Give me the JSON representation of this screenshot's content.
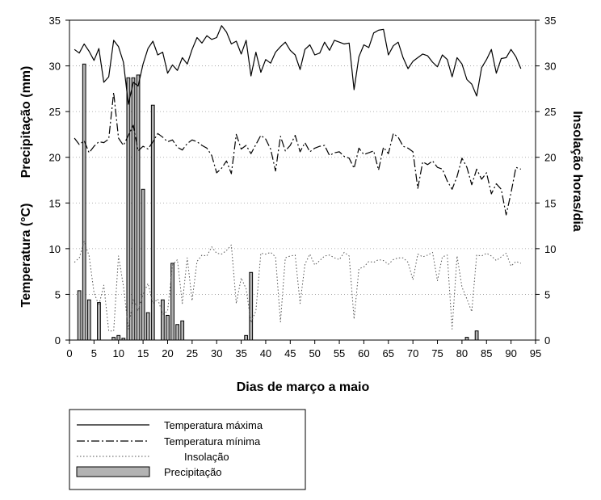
{
  "chart_data": {
    "type": "bar+line",
    "xlabel": "Dias de março a maio",
    "ylabel_left_top": "Precipitação (mm)",
    "ylabel_left_bottom": "Temperatura (°C)",
    "ylabel_right": "Insolação horas/dia",
    "xlim": [
      0,
      95
    ],
    "ylim_left": [
      0,
      35
    ],
    "ylim_right": [
      0,
      35
    ],
    "xticks": [
      0,
      5,
      10,
      15,
      20,
      25,
      30,
      35,
      40,
      45,
      50,
      55,
      60,
      65,
      70,
      75,
      80,
      85,
      90,
      95
    ],
    "yticks_left": [
      0,
      5,
      10,
      15,
      20,
      25,
      30,
      35
    ],
    "yticks_right": [
      0,
      5,
      10,
      15,
      20,
      25,
      30,
      35
    ],
    "grid": "horizontal dotted",
    "legend_position": "below",
    "legend": [
      {
        "label": "Temperatura máxima",
        "style": "solid"
      },
      {
        "label": "Temperatura mínima",
        "style": "dash-dot"
      },
      {
        "label": "Insolação",
        "style": "dotted"
      },
      {
        "label": "Precipitação",
        "style": "bar"
      }
    ],
    "series": [
      {
        "key": "tmax",
        "type": "line",
        "style": "solid",
        "x": [
          1,
          2,
          3,
          4,
          5,
          6,
          7,
          8,
          9,
          10,
          11,
          12,
          13,
          14,
          15,
          16,
          17,
          18,
          19,
          20,
          21,
          22,
          23,
          24,
          25,
          26,
          27,
          28,
          29,
          30,
          31,
          32,
          33,
          34,
          35,
          36,
          37,
          38,
          39,
          40,
          41,
          42,
          43,
          44,
          45,
          46,
          47,
          48,
          49,
          50,
          51,
          52,
          53,
          54,
          55,
          56,
          57,
          58,
          59,
          60,
          61,
          62,
          63,
          64,
          65,
          66,
          67,
          68,
          69,
          70,
          71,
          72,
          73,
          74,
          75,
          76,
          77,
          78,
          79,
          80,
          81,
          82,
          83,
          84,
          85,
          86,
          87,
          88,
          89,
          90,
          91,
          92
        ],
        "y": [
          31.8,
          31.4,
          32.4,
          31.6,
          30.6,
          31.9,
          28.2,
          28.8,
          32.8,
          32.1,
          30.4,
          25.8,
          28.2,
          27.8,
          30.2,
          31.9,
          32.7,
          31.2,
          31.5,
          29.2,
          30.1,
          29.5,
          30.9,
          30.2,
          31.8,
          33.1,
          32.5,
          33.3,
          32.9,
          33.1,
          34.4,
          33.7,
          32.4,
          32.7,
          31.3,
          32.8,
          28.9,
          31.5,
          29.3,
          30.7,
          30.3,
          31.5,
          32.1,
          32.6,
          31.7,
          31.2,
          29.6,
          31.8,
          32.3,
          31.2,
          31.4,
          32.6,
          31.7,
          32.8,
          32.6,
          32.4,
          32.5,
          27.4,
          31.0,
          32.3,
          32.0,
          33.6,
          33.9,
          34.0,
          31.2,
          32.2,
          32.6,
          30.9,
          29.7,
          30.5,
          30.9,
          31.3,
          31.1,
          30.4,
          29.9,
          31.2,
          30.7,
          28.8,
          30.9,
          30.2,
          28.5,
          28.0,
          26.7,
          29.8,
          30.7,
          31.8,
          29.2,
          30.8,
          30.9,
          31.8,
          31.0,
          29.7
        ]
      },
      {
        "key": "tmin",
        "type": "line",
        "style": "dash-dot",
        "x": [
          1,
          2,
          3,
          4,
          5,
          6,
          7,
          8,
          9,
          10,
          11,
          12,
          13,
          14,
          15,
          16,
          17,
          18,
          19,
          20,
          21,
          22,
          23,
          24,
          25,
          26,
          27,
          28,
          29,
          30,
          31,
          32,
          33,
          34,
          35,
          36,
          37,
          38,
          39,
          40,
          41,
          42,
          43,
          44,
          45,
          46,
          47,
          48,
          49,
          50,
          51,
          52,
          53,
          54,
          55,
          56,
          57,
          58,
          59,
          60,
          61,
          62,
          63,
          64,
          65,
          66,
          67,
          68,
          69,
          70,
          71,
          72,
          73,
          74,
          75,
          76,
          77,
          78,
          79,
          80,
          81,
          82,
          83,
          84,
          85,
          86,
          87,
          88,
          89,
          90,
          91,
          92
        ],
        "y": [
          22.1,
          21.4,
          21.8,
          20.5,
          21.2,
          21.7,
          21.6,
          22.0,
          27.1,
          22.1,
          21.3,
          22.4,
          23.5,
          20.7,
          21.2,
          20.9,
          21.7,
          22.6,
          22.2,
          21.7,
          21.9,
          21.1,
          20.8,
          21.5,
          21.9,
          21.7,
          21.3,
          21.0,
          20.2,
          18.3,
          18.8,
          19.6,
          18.2,
          22.5,
          20.9,
          21.3,
          20.4,
          21.4,
          22.4,
          22.0,
          20.9,
          18.5,
          22.3,
          20.7,
          21.3,
          22.4,
          20.6,
          21.6,
          20.6,
          21.0,
          21.2,
          21.3,
          20.2,
          20.5,
          20.6,
          20.1,
          19.9,
          18.8,
          21.0,
          20.3,
          20.5,
          20.7,
          18.6,
          21.1,
          20.4,
          22.6,
          22.2,
          21.2,
          21.0,
          20.6,
          16.6,
          19.5,
          19.2,
          19.6,
          18.9,
          18.7,
          17.4,
          16.5,
          17.9,
          19.9,
          18.9,
          17.0,
          18.7,
          17.6,
          18.3,
          16.0,
          17.1,
          16.5,
          13.7,
          16.1,
          18.9,
          18.7
        ]
      },
      {
        "key": "insolacao",
        "type": "line",
        "style": "dotted",
        "x": [
          1,
          2,
          3,
          4,
          5,
          6,
          7,
          8,
          9,
          10,
          11,
          12,
          13,
          14,
          15,
          16,
          17,
          18,
          19,
          20,
          21,
          22,
          23,
          24,
          25,
          26,
          27,
          28,
          29,
          30,
          31,
          32,
          33,
          34,
          35,
          36,
          37,
          38,
          39,
          40,
          41,
          42,
          43,
          44,
          45,
          46,
          47,
          48,
          49,
          50,
          51,
          52,
          53,
          54,
          55,
          56,
          57,
          58,
          59,
          60,
          61,
          62,
          63,
          64,
          65,
          66,
          67,
          68,
          69,
          70,
          71,
          72,
          73,
          74,
          75,
          76,
          77,
          78,
          79,
          80,
          81,
          82,
          83,
          84,
          85,
          86,
          87,
          88,
          89,
          90,
          91,
          92
        ],
        "y": [
          8.5,
          9.0,
          10.8,
          9.2,
          5.2,
          3.8,
          6.0,
          1.0,
          1.0,
          9.2,
          5.9,
          1.2,
          4.5,
          3.2,
          5.0,
          6.2,
          4.0,
          4.5,
          2.8,
          3.2,
          8.2,
          8.8,
          4.0,
          9.0,
          4.3,
          8.6,
          9.3,
          9.2,
          10.2,
          9.5,
          9.4,
          9.8,
          10.4,
          4.0,
          6.8,
          5.6,
          1.9,
          3.2,
          9.5,
          9.4,
          9.6,
          9.1,
          2.0,
          9.0,
          9.2,
          9.3,
          4.0,
          8.3,
          9.4,
          8.2,
          8.7,
          9.2,
          9.3,
          9.0,
          8.8,
          9.6,
          9.2,
          2.3,
          7.8,
          8.0,
          8.6,
          8.5,
          8.8,
          8.7,
          8.3,
          8.8,
          9.0,
          9.0,
          8.5,
          6.6,
          9.4,
          9.1,
          9.3,
          9.6,
          6.5,
          9.1,
          9.3,
          1.2,
          9.2,
          5.8,
          4.5,
          3.1,
          9.3,
          9.2,
          9.5,
          9.2,
          8.7,
          9.1,
          9.5,
          8.1,
          8.6,
          8.4
        ]
      },
      {
        "key": "precipitacao",
        "type": "bar",
        "x": [
          2,
          3,
          4,
          6,
          9,
          10,
          11,
          12,
          13,
          14,
          15,
          16,
          17,
          19,
          20,
          21,
          22,
          23,
          36,
          37,
          81,
          83
        ],
        "y": [
          5.4,
          30.2,
          4.4,
          4.1,
          0.3,
          0.5,
          0.2,
          28.7,
          28.7,
          29.0,
          16.5,
          3.0,
          25.7,
          4.4,
          2.7,
          8.4,
          1.7,
          2.1,
          0.5,
          7.4,
          0.3,
          1.0
        ]
      }
    ]
  }
}
